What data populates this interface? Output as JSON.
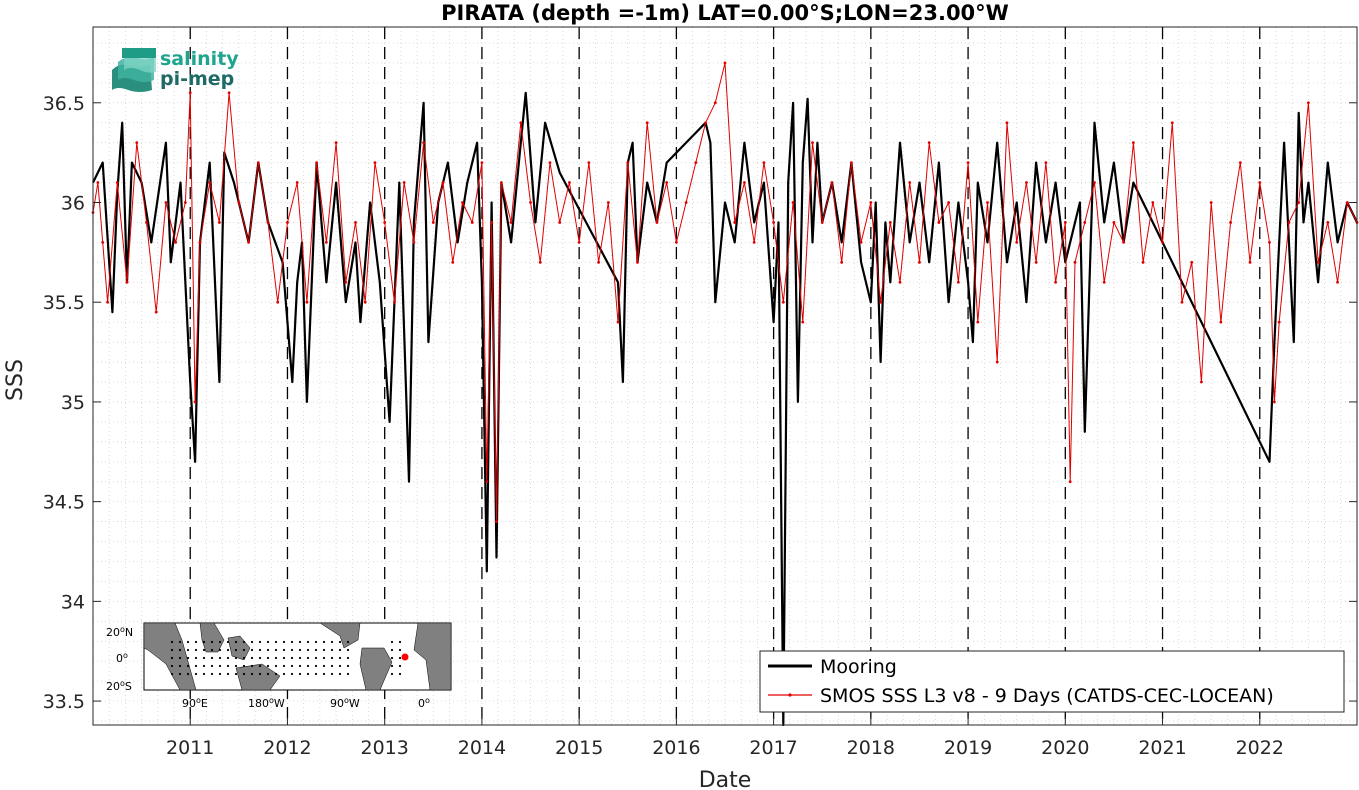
{
  "chart_data": {
    "type": "line",
    "title": "PIRATA (depth =-1m) LAT=0.00°S;LON=23.00°W",
    "xlabel": "Date",
    "ylabel": "SSS",
    "xlim": [
      2010.0,
      2023.0
    ],
    "ylim": [
      33.38,
      36.88
    ],
    "x_ticks": [
      2011,
      2012,
      2013,
      2014,
      2015,
      2016,
      2017,
      2018,
      2019,
      2020,
      2021,
      2022
    ],
    "y_ticks": [
      33.5,
      34,
      34.5,
      35,
      35.5,
      36,
      36.5
    ],
    "y_tick_labels": [
      "33.5",
      "34",
      "34.5",
      "35",
      "35.5",
      "36",
      "36.5"
    ],
    "grid": "minor-dotted",
    "year_separators": "dashed",
    "legend_position": "bottom-right",
    "series": [
      {
        "name": "Mooring",
        "color": "#000000",
        "x": [
          2010.0,
          2010.1,
          2010.2,
          2010.25,
          2010.3,
          2010.35,
          2010.4,
          2010.5,
          2010.6,
          2010.75,
          2010.8,
          2010.9,
          2011.0,
          2011.05,
          2011.1,
          2011.2,
          2011.3,
          2011.35,
          2011.45,
          2011.6,
          2011.7,
          2011.8,
          2011.95,
          2012.05,
          2012.1,
          2012.15,
          2012.2,
          2012.3,
          2012.4,
          2012.5,
          2012.6,
          2012.7,
          2012.75,
          2012.85,
          2012.95,
          2013.05,
          2013.15,
          2013.25,
          2013.3,
          2013.4,
          2013.45,
          2013.55,
          2013.65,
          2013.75,
          2013.85,
          2013.95,
          2014.0,
          2014.05,
          2014.1,
          2014.15,
          2014.2,
          2014.3,
          2014.4,
          2014.45,
          2014.55,
          2014.65,
          2014.8,
          2015.4,
          2015.45,
          2015.5,
          2015.55,
          2015.6,
          2015.7,
          2015.8,
          2015.9,
          2016.3,
          2016.35,
          2016.4,
          2016.5,
          2016.6,
          2016.7,
          2016.8,
          2016.9,
          2017.0,
          2017.05,
          2017.1,
          2017.15,
          2017.2,
          2017.25,
          2017.3,
          2017.35,
          2017.4,
          2017.45,
          2017.5,
          2017.6,
          2017.7,
          2017.8,
          2017.9,
          2018.0,
          2018.05,
          2018.1,
          2018.15,
          2018.2,
          2018.3,
          2018.4,
          2018.5,
          2018.6,
          2018.7,
          2018.8,
          2018.9,
          2019.0,
          2019.05,
          2019.1,
          2019.2,
          2019.3,
          2019.4,
          2019.5,
          2019.6,
          2019.7,
          2019.8,
          2019.9,
          2020.0,
          2020.15,
          2020.2,
          2020.3,
          2020.4,
          2020.5,
          2020.6,
          2020.7,
          2022.1,
          2022.15,
          2022.2,
          2022.25,
          2022.35,
          2022.4,
          2022.45,
          2022.5,
          2022.6,
          2022.7,
          2022.8,
          2022.9,
          2023.0
        ],
        "y": [
          36.1,
          36.2,
          35.45,
          36.05,
          36.4,
          35.6,
          36.2,
          36.1,
          35.8,
          36.3,
          35.7,
          36.1,
          35.1,
          34.7,
          35.8,
          36.2,
          35.1,
          36.25,
          36.1,
          35.8,
          36.2,
          35.9,
          35.7,
          35.1,
          35.6,
          35.8,
          35.0,
          36.2,
          35.6,
          36.1,
          35.5,
          35.8,
          35.4,
          36.0,
          35.6,
          34.9,
          36.1,
          34.6,
          35.9,
          36.5,
          35.3,
          36.0,
          36.2,
          35.8,
          36.1,
          36.3,
          35.6,
          34.15,
          36.0,
          34.22,
          36.1,
          35.8,
          36.3,
          36.55,
          35.9,
          36.4,
          36.15,
          35.6,
          35.1,
          36.2,
          36.3,
          35.7,
          36.1,
          35.9,
          36.2,
          36.4,
          36.3,
          35.5,
          36.0,
          35.8,
          36.3,
          35.9,
          36.1,
          35.4,
          35.9,
          33.38,
          36.1,
          36.5,
          35.0,
          36.2,
          36.52,
          35.8,
          36.3,
          35.9,
          36.1,
          35.8,
          36.2,
          35.7,
          35.5,
          36.0,
          35.2,
          35.9,
          35.6,
          36.3,
          35.8,
          36.1,
          35.7,
          36.2,
          35.5,
          36.0,
          35.6,
          35.3,
          36.1,
          35.8,
          36.3,
          35.7,
          36.0,
          35.5,
          36.2,
          35.8,
          36.1,
          35.7,
          36.0,
          34.85,
          36.4,
          35.9,
          36.2,
          35.8,
          36.1,
          34.7,
          35.3,
          35.8,
          36.3,
          35.3,
          36.45,
          35.9,
          36.1,
          35.6,
          36.2,
          35.8,
          36.0,
          35.9
        ]
      },
      {
        "name": "SMOS SSS L3 v8 - 9 Days (CATDS-CEC-LOCEAN)",
        "color": "#e00000",
        "x": [
          2010.0,
          2010.05,
          2010.1,
          2010.15,
          2010.25,
          2010.35,
          2010.45,
          2010.55,
          2010.65,
          2010.75,
          2010.85,
          2010.95,
          2011.0,
          2011.05,
          2011.1,
          2011.2,
          2011.3,
          2011.4,
          2011.5,
          2011.6,
          2011.7,
          2011.8,
          2011.9,
          2012.0,
          2012.1,
          2012.2,
          2012.3,
          2012.4,
          2012.5,
          2012.6,
          2012.7,
          2012.8,
          2012.9,
          2013.0,
          2013.1,
          2013.2,
          2013.3,
          2013.4,
          2013.5,
          2013.6,
          2013.7,
          2013.8,
          2013.9,
          2014.0,
          2014.05,
          2014.1,
          2014.15,
          2014.2,
          2014.3,
          2014.4,
          2014.5,
          2014.6,
          2014.7,
          2014.8,
          2014.9,
          2015.0,
          2015.1,
          2015.2,
          2015.3,
          2015.4,
          2015.5,
          2015.6,
          2015.7,
          2015.8,
          2015.9,
          2016.0,
          2016.1,
          2016.2,
          2016.3,
          2016.4,
          2016.5,
          2016.6,
          2016.7,
          2016.8,
          2016.9,
          2017.0,
          2017.1,
          2017.2,
          2017.3,
          2017.4,
          2017.5,
          2017.6,
          2017.7,
          2017.8,
          2017.9,
          2018.0,
          2018.1,
          2018.2,
          2018.3,
          2018.4,
          2018.5,
          2018.6,
          2018.7,
          2018.8,
          2018.9,
          2019.0,
          2019.1,
          2019.2,
          2019.3,
          2019.4,
          2019.5,
          2019.6,
          2019.7,
          2019.8,
          2019.9,
          2020.0,
          2020.05,
          2020.1,
          2020.2,
          2020.3,
          2020.4,
          2020.5,
          2020.6,
          2020.7,
          2020.8,
          2020.9,
          2021.0,
          2021.1,
          2021.2,
          2021.3,
          2021.4,
          2021.5,
          2021.6,
          2021.7,
          2021.8,
          2021.9,
          2022.0,
          2022.1,
          2022.15,
          2022.2,
          2022.3,
          2022.4,
          2022.5,
          2022.6,
          2022.7,
          2022.8,
          2022.9,
          2023.0
        ],
        "y": [
          35.95,
          36.1,
          35.8,
          35.5,
          36.1,
          35.6,
          36.3,
          35.9,
          35.45,
          36.0,
          35.8,
          36.0,
          36.55,
          35.0,
          35.8,
          36.1,
          35.9,
          36.55,
          36.0,
          35.8,
          36.2,
          35.9,
          35.5,
          35.9,
          36.1,
          35.5,
          36.2,
          35.8,
          36.3,
          35.6,
          35.9,
          35.5,
          36.2,
          35.9,
          35.5,
          36.1,
          35.8,
          36.3,
          35.9,
          36.1,
          35.7,
          36.0,
          35.9,
          36.2,
          34.6,
          35.9,
          34.4,
          36.1,
          35.9,
          36.4,
          36.0,
          35.7,
          36.2,
          35.9,
          36.1,
          35.8,
          36.2,
          35.7,
          36.0,
          35.4,
          36.2,
          35.7,
          36.4,
          35.9,
          36.1,
          35.8,
          36.0,
          36.2,
          36.4,
          36.5,
          36.7,
          35.9,
          36.1,
          35.8,
          36.2,
          35.9,
          35.5,
          36.0,
          35.4,
          36.3,
          35.9,
          36.1,
          35.7,
          36.2,
          35.8,
          36.0,
          35.5,
          35.9,
          35.6,
          36.1,
          35.7,
          36.3,
          35.9,
          36.0,
          35.6,
          36.2,
          35.4,
          36.0,
          35.2,
          36.4,
          35.8,
          36.1,
          35.7,
          36.2,
          35.6,
          35.9,
          34.6,
          35.7,
          35.9,
          36.1,
          35.6,
          35.9,
          35.8,
          36.3,
          35.7,
          36.0,
          35.8,
          36.4,
          35.5,
          35.7,
          35.1,
          36.0,
          35.4,
          35.9,
          36.2,
          35.7,
          36.1,
          35.8,
          35.0,
          35.4,
          35.9,
          36.0,
          36.5,
          35.7,
          35.9,
          35.6,
          36.0,
          35.9
        ]
      }
    ]
  },
  "logo": {
    "line1": "salinity",
    "line2": "pi-mep"
  },
  "inset_map": {
    "y_labels": [
      "20",
      "0",
      "20"
    ],
    "y_hemis": [
      "N",
      "",
      "S"
    ],
    "x_labels": [
      "90",
      "180",
      "90",
      "0"
    ],
    "x_hemis": [
      "E",
      "W",
      "W",
      ""
    ],
    "marker_color": "#ff0000"
  }
}
